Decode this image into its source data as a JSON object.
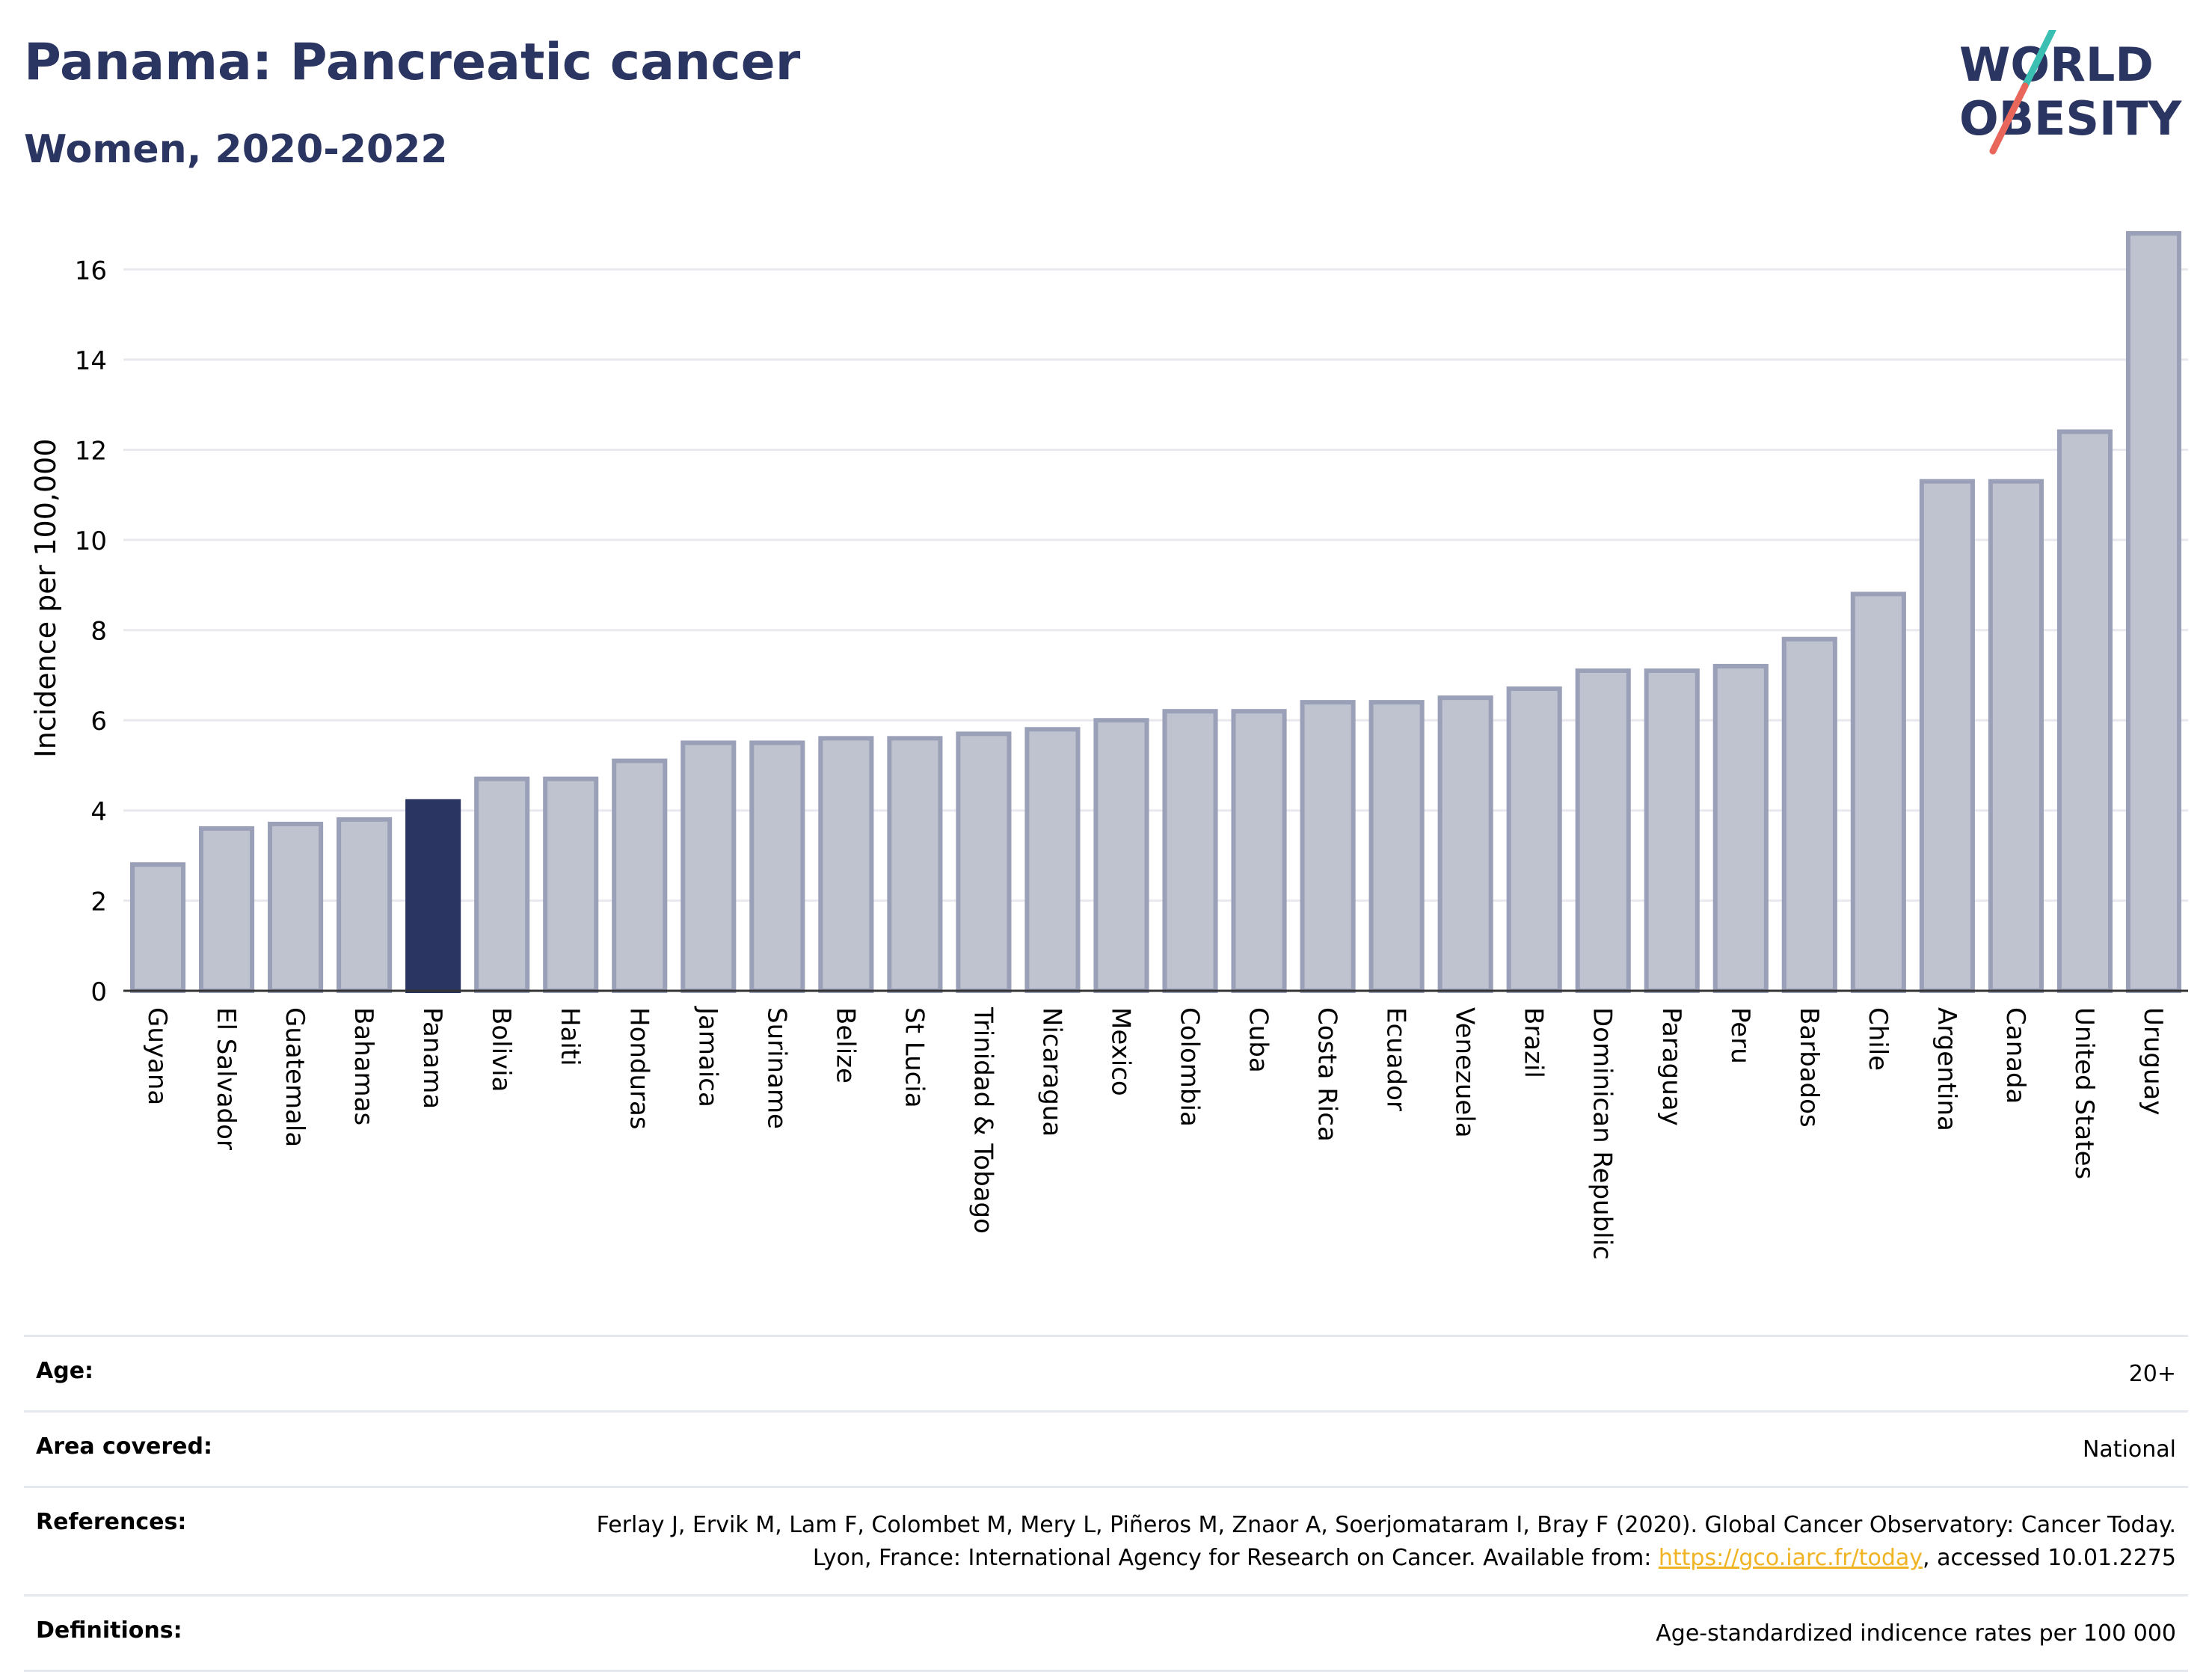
{
  "header": {
    "title": "Panama: Pancreatic cancer",
    "subtitle": "Women, 2020-2022"
  },
  "logo": {
    "line1": "WORLD",
    "line2": "OBESITY",
    "text_color": "#2b3561",
    "slash_colors": [
      "#3bbfb3",
      "#e8665a"
    ]
  },
  "colors": {
    "highlight_bar": "#2b3561",
    "default_bar_fill": "#bfc3d0",
    "default_bar_stroke": "#9aa0b7"
  },
  "chart_data": {
    "type": "bar",
    "ylabel": "Incidence per 100,000",
    "ylim": [
      0,
      17
    ],
    "yticks": [
      0,
      2,
      4,
      6,
      8,
      10,
      12,
      14,
      16
    ],
    "grid": true,
    "highlight": "Panama",
    "categories": [
      "Guyana",
      "El Salvador",
      "Guatemala",
      "Bahamas",
      "Panama",
      "Bolivia",
      "Haiti",
      "Honduras",
      "Jamaica",
      "Suriname",
      "Belize",
      "St Lucia",
      "Trinidad & Tobago",
      "Nicaragua",
      "Mexico",
      "Colombia",
      "Cuba",
      "Costa Rica",
      "Ecuador",
      "Venezuela",
      "Brazil",
      "Dominican Republic",
      "Paraguay",
      "Peru",
      "Barbados",
      "Chile",
      "Argentina",
      "Canada",
      "United States",
      "Uruguay"
    ],
    "values": [
      2.8,
      3.6,
      3.7,
      3.8,
      4.2,
      4.7,
      4.7,
      5.1,
      5.5,
      5.5,
      5.6,
      5.6,
      5.7,
      5.8,
      6.0,
      6.2,
      6.2,
      6.4,
      6.4,
      6.5,
      6.7,
      7.1,
      7.1,
      7.2,
      7.8,
      8.8,
      11.3,
      11.3,
      12.4,
      16.8
    ]
  },
  "meta": {
    "age_label": "Age:",
    "age_value": "20+",
    "area_label": "Area covered:",
    "area_value": "National",
    "references_label": "References:",
    "references_text": "Ferlay J, Ervik M, Lam F, Colombet M, Mery L, Piñeros M, Znaor A, Soerjomataram I, Bray F (2020). Global Cancer Observatory: Cancer Today. Lyon, France: International Agency for Research on Cancer. Available from: ",
    "references_link": "https://gco.iarc.fr/today",
    "references_suffix": ", accessed 10.01.2275",
    "definitions_label": "Definitions:",
    "definitions_value": "Age-standardized indicence rates per 100 000"
  }
}
